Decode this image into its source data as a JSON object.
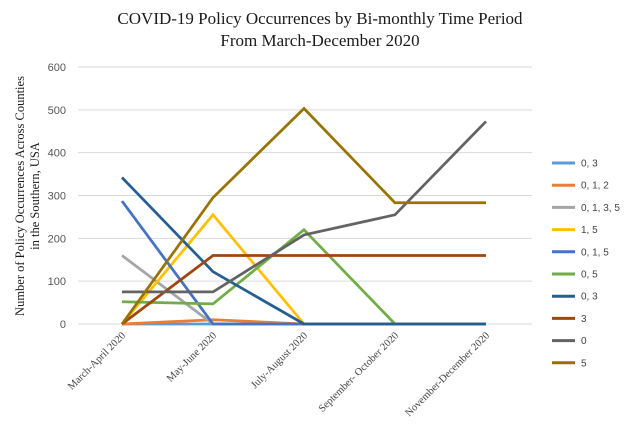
{
  "chart_data": {
    "type": "line",
    "title": "COVID-19 Policy Occurrences by Bi-monthly Time Period",
    "subtitle": "From March-December 2020",
    "xlabel": "",
    "ylabel": "Number of Policy Occurrences Across Counties in the Southern, USA",
    "ylim": [
      0,
      600
    ],
    "yticks": [
      0,
      100,
      200,
      300,
      400,
      500,
      600
    ],
    "grid": true,
    "legend_position": "right",
    "categories": [
      "March-April 2020",
      "May-June 2020",
      "July-August 2020",
      "September- October 2020",
      "November-December 2020"
    ],
    "series": [
      {
        "name": "0, 3",
        "color": "#5b9bd5",
        "values": [
          0,
          0,
          0,
          0,
          0
        ]
      },
      {
        "name": "0, 1, 2",
        "color": "#ed7d31",
        "values": [
          0,
          10,
          0,
          0,
          0
        ]
      },
      {
        "name": "0, 1, 3, 5",
        "color": "#a5a5a5",
        "values": [
          160,
          0,
          0,
          0,
          0
        ]
      },
      {
        "name": "1, 5",
        "color": "#ffc000",
        "values": [
          0,
          255,
          0,
          0,
          0
        ]
      },
      {
        "name": "0, 1, 5",
        "color": "#4472c4",
        "values": [
          287,
          0,
          0,
          0,
          0
        ]
      },
      {
        "name": "0, 5",
        "color": "#70ad47",
        "values": [
          52,
          47,
          220,
          0,
          0
        ]
      },
      {
        "name": "0, 3",
        "color": "#255e91",
        "values": [
          342,
          122,
          0,
          0,
          0
        ]
      },
      {
        "name": "3",
        "color": "#9e480e",
        "values": [
          0,
          160,
          160,
          160,
          160
        ]
      },
      {
        "name": "0",
        "color": "#636363",
        "values": [
          75,
          75,
          208,
          255,
          473
        ]
      },
      {
        "name": "5",
        "color": "#997300",
        "values": [
          0,
          295,
          503,
          283,
          283
        ]
      }
    ]
  }
}
